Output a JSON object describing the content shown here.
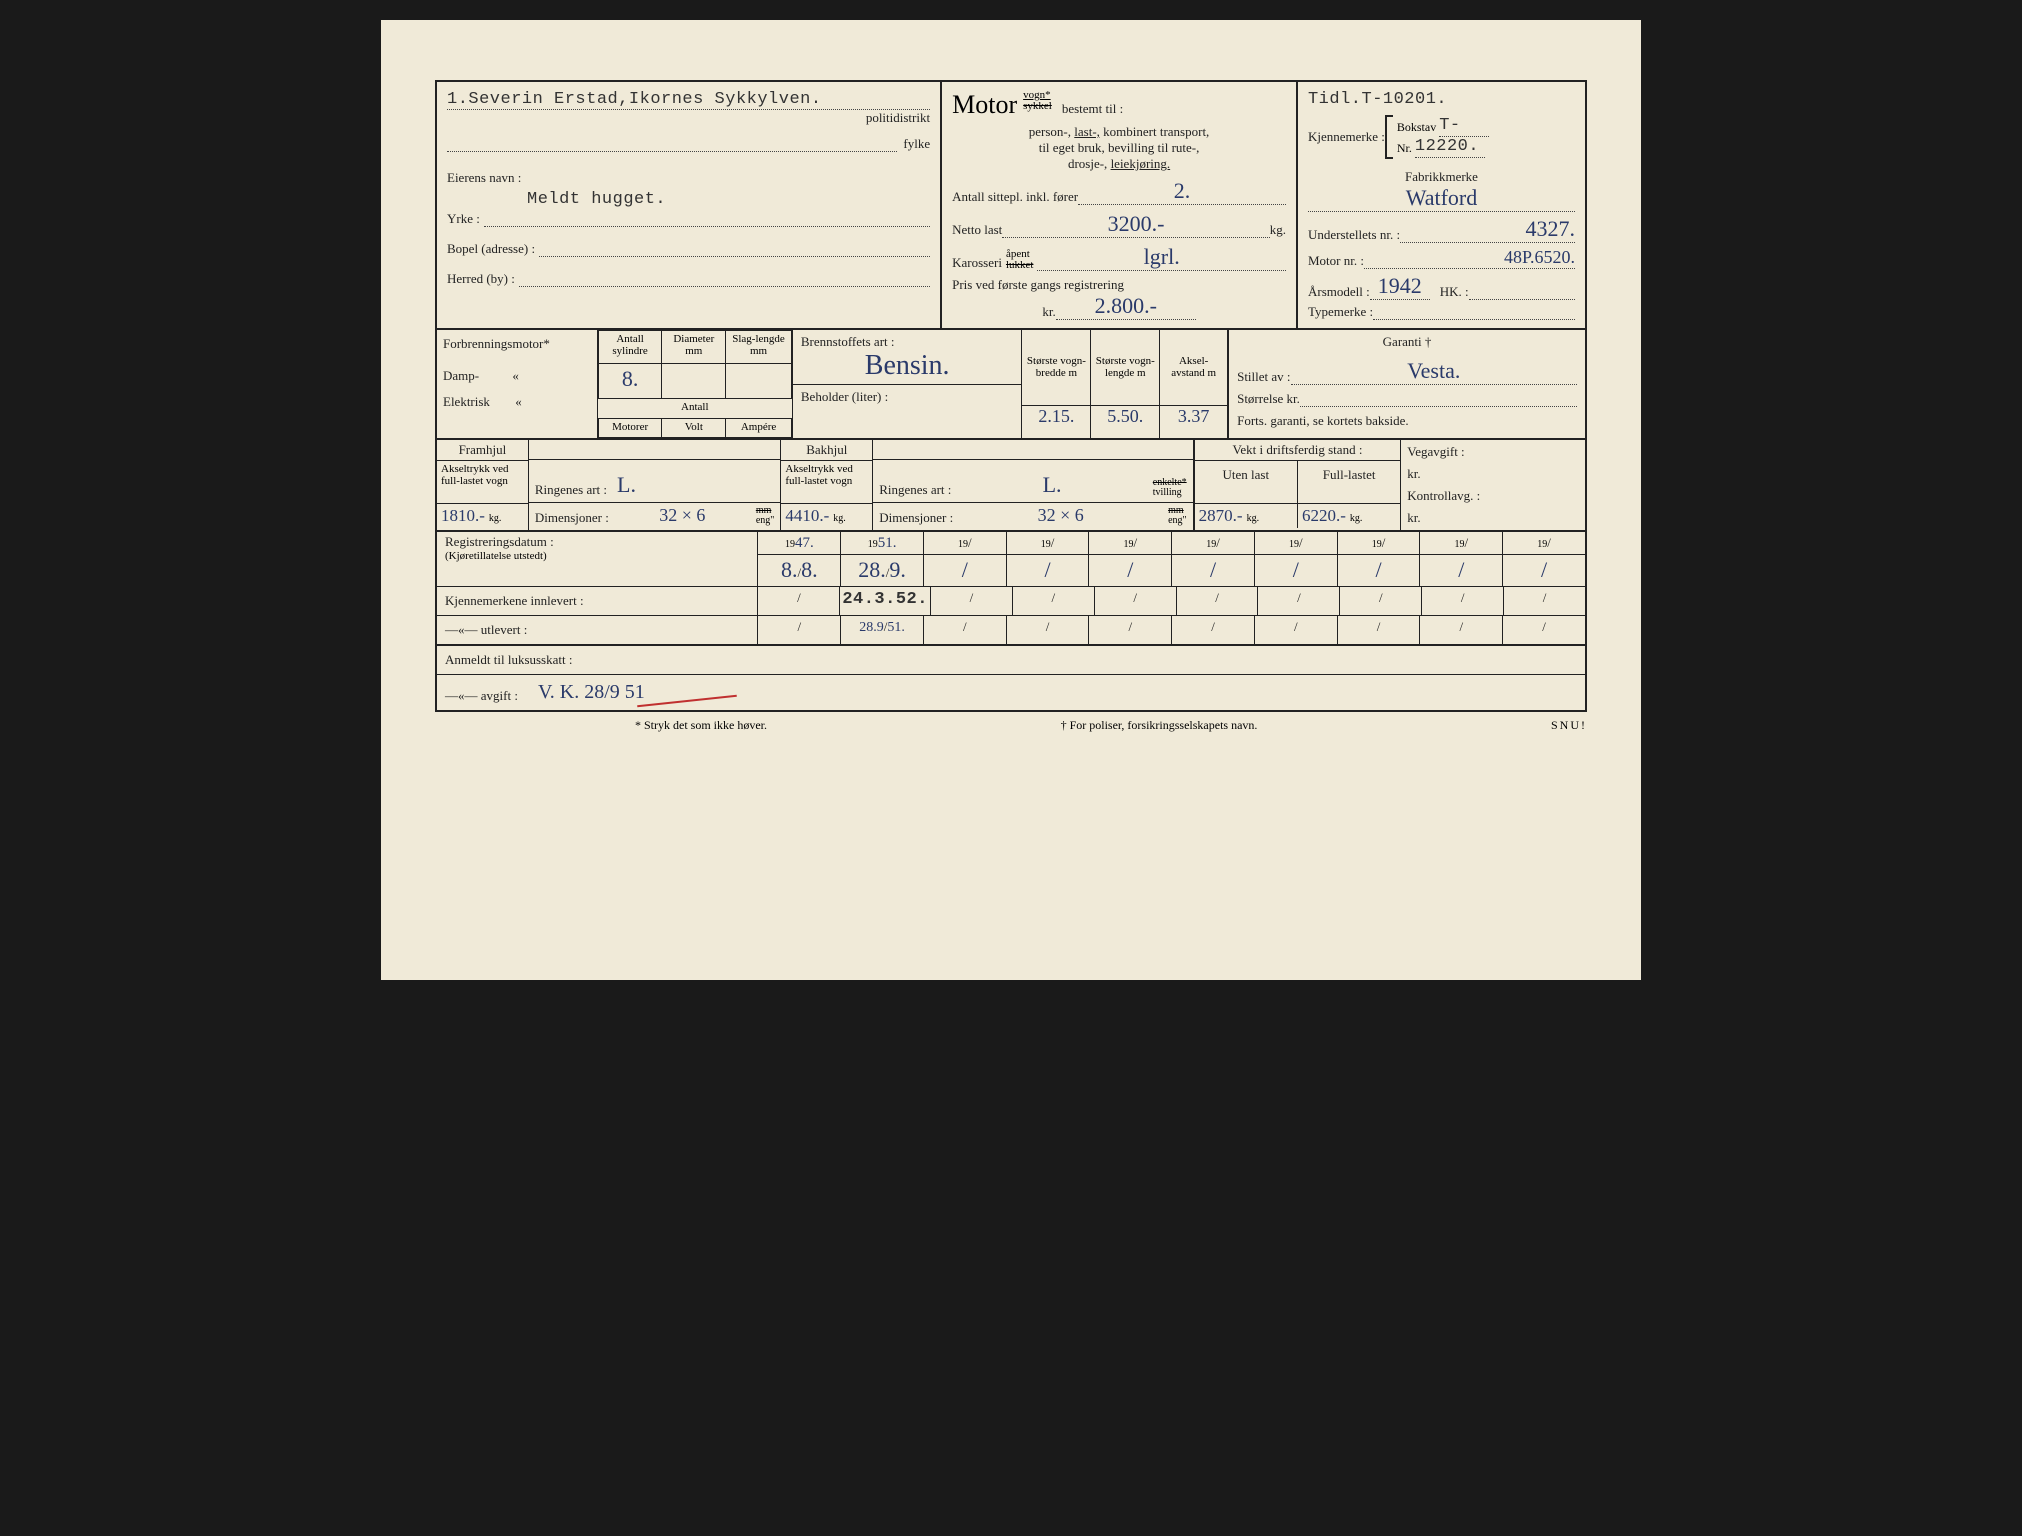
{
  "header": {
    "owner_line": "1.Severin Erstad,Ikornes Sykkylven.",
    "politidistrikt_label": "politidistrikt",
    "fylke_label": "fylke",
    "eier_label": "Eierens navn :",
    "yrke_label": "Yrke :",
    "eier_value": "Meldt hugget.",
    "bopel_label": "Bopel (adresse) :",
    "herred_label": "Herred (by) :"
  },
  "motor_block": {
    "title": "Motor",
    "vogn": "vogn*",
    "sykkel": "sykkel",
    "bestemt": "bestemt til :",
    "line1": "person-, last-, kombinert transport,",
    "line2": "til eget bruk, bevilling til rute-,",
    "line3": "drosje-, leiekjøring.",
    "sittepl_label": "Antall sittepl. inkl. fører",
    "sittepl_value": "2.",
    "netto_label": "Netto last",
    "netto_value": "3200.-",
    "netto_unit": "kg.",
    "karosseri_label": "Karosseri",
    "karosseri_apent": "åpent",
    "karosseri_lukket": "lukket",
    "karosseri_value": "lgrl.",
    "pris_label": "Pris ved første gangs registrering",
    "pris_kr": "kr.",
    "pris_value": "2.800.-"
  },
  "reg_block": {
    "tidl": "Tidl.T-10201.",
    "kjennemerke_label": "Kjennemerke :",
    "bokstav_label": "Bokstav",
    "bokstav_value": "T-",
    "nr_label": "Nr.",
    "nr_value": "12220.",
    "fabrikkmerke_label": "Fabrikkmerke",
    "fabrikkmerke_value": "Watford",
    "understell_label": "Understellets nr. :",
    "understell_value": "4327.",
    "motornr_label": "Motor nr. :",
    "motornr_value": "48P.6520.",
    "arsmodell_label": "Årsmodell :",
    "arsmodell_value": "1942",
    "hk_label": "HK. :",
    "typemerke_label": "Typemerke :"
  },
  "engine_row": {
    "forbr_label": "Forbrenningsmotor*",
    "damp_label": "Damp-",
    "elektrisk_label": "Elektrisk",
    "quote": "«",
    "sylindre_label": "Antall sylindre",
    "sylindre_value": "8.",
    "diameter_label": "Diameter mm",
    "slag_label": "Slag-lengde mm",
    "antall_label": "Antall",
    "motorer_label": "Motorer",
    "volt_label": "Volt",
    "ampere_label": "Ampére",
    "brennstoff_label": "Brennstoffets art :",
    "brennstoff_value": "Bensin.",
    "beholder_label": "Beholder (liter) :",
    "bredde_label": "Største vogn-bredde m",
    "bredde_value": "2.15.",
    "lengde_label": "Største vogn-lengde m",
    "lengde_value": "5.50.",
    "aksel_label": "Aksel-avstand m",
    "aksel_value": "3.37",
    "garanti_label": "Garanti †",
    "stillet_label": "Stillet av :",
    "stillet_value": "Vesta.",
    "storrelse_label": "Størrelse kr.",
    "forts_label": "Forts. garanti, se kortets bakside."
  },
  "wheels": {
    "framhjul": "Framhjul",
    "bakhjul": "Bakhjul",
    "akseltrykk_label": "Akseltrykk ved full-lastet vogn",
    "akseltrykk_front": "1810.-",
    "akseltrykk_back": "4410.-",
    "kg": "kg.",
    "ringenes_label": "Ringenes art :",
    "ringenes_front": "L.",
    "ringenes_back": "L.",
    "enkelte": "enkelte*",
    "tvilling": "tvilling",
    "dim_label": "Dimensjoner :",
    "mm": "mm",
    "eng": "eng\"",
    "dim_front": "32 × 6",
    "dim_back": "32 × 6",
    "vekt_label": "Vekt i driftsferdig stand :",
    "uten_label": "Uten last",
    "uten_value": "2870.-",
    "full_label": "Full-lastet",
    "full_value": "6220.-",
    "vegavgift_label": "Vegavgift :",
    "kr": "kr.",
    "kontroll_label": "Kontrollavg. :"
  },
  "dates": {
    "years": [
      "47.",
      "51.",
      "",
      "",
      "",
      "",
      "",
      "",
      "",
      ""
    ],
    "year_prefix": "19",
    "reg_label": "Registreringsdatum :",
    "reg_sub": "(Kjøretillatelse utstedt)",
    "reg_values": [
      "8.|8.",
      "28.|9.",
      "",
      "",
      "",
      "",
      "",
      "",
      "",
      ""
    ],
    "innlevert_label": "Kjennemerkene innlevert :",
    "innlevert_values": [
      "|",
      "24.3.52.",
      "",
      "",
      "",
      "",
      "",
      "",
      "",
      ""
    ],
    "utlevert_label": "—«—      utlevert :",
    "utlevert_values": [
      "|",
      "28.9|51.",
      "",
      "",
      "",
      "",
      "",
      "",
      "",
      ""
    ]
  },
  "bottom": {
    "luksus_label": "Anmeldt til luksusskatt :",
    "avgift_label": "—«—      avgift :",
    "avgift_value": "V. K.  28/9 51"
  },
  "footer": {
    "left": "* Stryk det som ikke høver.",
    "mid": "† For poliser, forsikringsselskapets navn.",
    "right": "SNU!"
  },
  "colors": {
    "paper": "#f0ead8",
    "ink": "#222222",
    "pen": "#2a3a6a",
    "typed": "#333333"
  }
}
